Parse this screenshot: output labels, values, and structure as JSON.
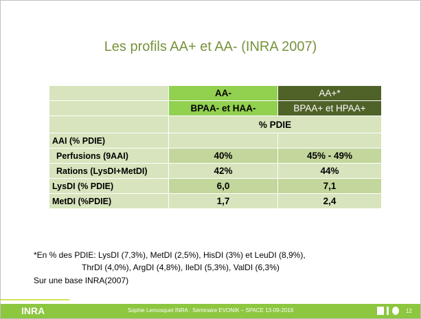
{
  "title": "Les profils AA+ et AA- (INRA 2007)",
  "table": {
    "header": [
      [
        "AA-",
        "AA+*"
      ],
      [
        "BPAA- et HAA-",
        "BPAA+ et HPAA+"
      ]
    ],
    "unit": "% PDIE",
    "section": "AAI (% PDIE)",
    "rows": [
      [
        "Perfusions (9AAI)",
        "40%",
        "45% - 49%"
      ],
      [
        "Rations (LysDI+MetDI)",
        "42%",
        "44%"
      ],
      [
        "LysDI (% PDIE)",
        "6,0",
        "7,1"
      ],
      [
        "MetDI (%PDIE)",
        "1,7",
        "2,4"
      ]
    ]
  },
  "notes": [
    "*En % des PDIE:  LysDI (7,3%), MetDI (2,5%), HisDI (3%) et LeuDI (8,9%),",
    "ThrDI (4,0%), ArgDI (4,8%), IleDI (5,3%), ValDI (6,3%)",
    "Sur une base INRA(2007)"
  ],
  "footer": {
    "logo": "INRA",
    "text": "Sophie Lemosquet INRA : Séminaire EVONIK – SPACE 13-09-2018",
    "page": "12"
  }
}
